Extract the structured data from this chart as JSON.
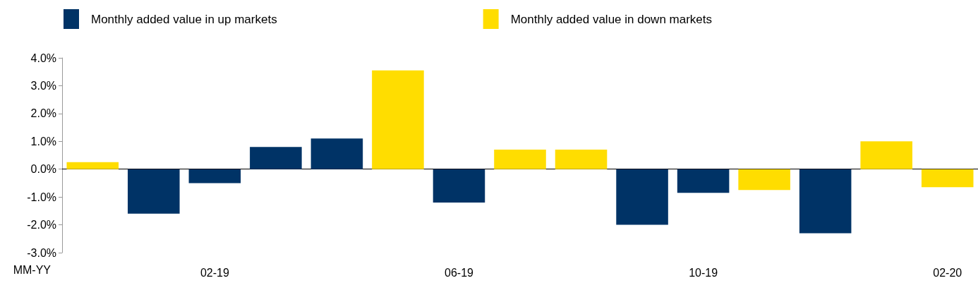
{
  "chart_data": {
    "type": "bar",
    "xlabel": "MM-YY",
    "categories": [
      null,
      null,
      "02-19",
      null,
      null,
      null,
      "06-19",
      null,
      null,
      null,
      "10-19",
      null,
      null,
      null,
      "02-20"
    ],
    "series": [
      {
        "name": "Monthly added value in up markets",
        "color": "#003366",
        "values": [
          null,
          -1.6,
          -0.5,
          0.8,
          1.1,
          null,
          -1.2,
          null,
          null,
          -2.0,
          -0.85,
          null,
          -2.3,
          null,
          null
        ]
      },
      {
        "name": "Monthly added value in down markets",
        "color": "#ffdd00",
        "values": [
          0.25,
          null,
          null,
          null,
          null,
          3.55,
          null,
          0.7,
          0.7,
          null,
          null,
          -0.75,
          null,
          1.0,
          -0.65
        ]
      }
    ],
    "ylim": [
      -3,
      4
    ],
    "yticks": [
      {
        "value": -3,
        "label": "-3.0%"
      },
      {
        "value": -2,
        "label": "-2.0%"
      },
      {
        "value": -1,
        "label": "-1.0%"
      },
      {
        "value": 0,
        "label": "0.0%"
      },
      {
        "value": 1,
        "label": "1.0%"
      },
      {
        "value": 2,
        "label": "2.0%"
      },
      {
        "value": 3,
        "label": "3.0%"
      },
      {
        "value": 4,
        "label": "4.0%"
      }
    ],
    "legend": "top"
  }
}
